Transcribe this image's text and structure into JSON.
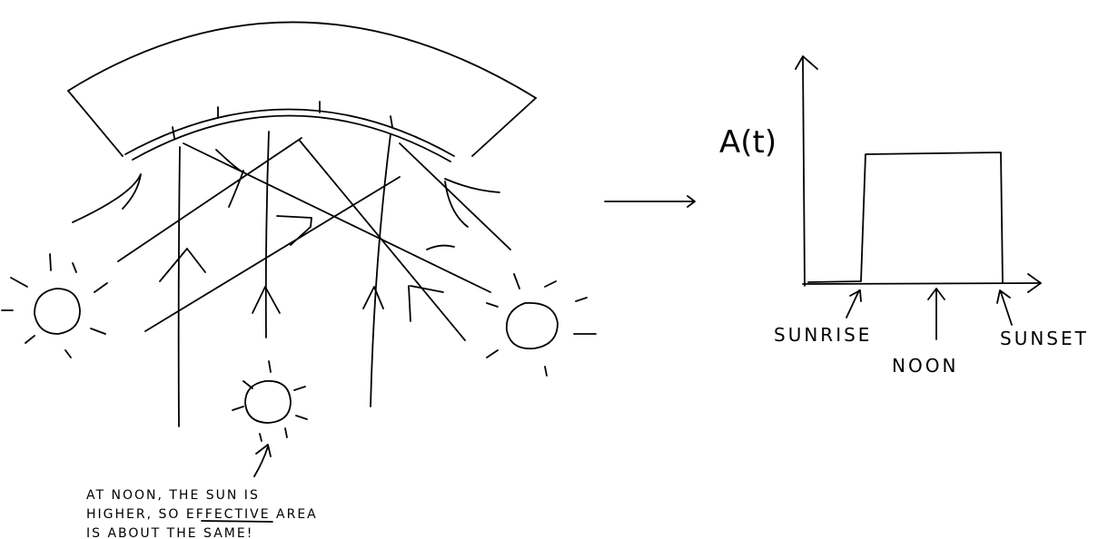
{
  "diagram": {
    "graph": {
      "y_label": "A(t)",
      "x_marks": {
        "sunrise": "SUNRISE",
        "noon": "NOON",
        "sunset": "SUNSET"
      }
    },
    "note": {
      "line1": "AT NOON, THE SUN IS",
      "line2_start": "HIGHER, SO ",
      "line2_emph": "EFFECTIVE",
      "line2_end": " AREA",
      "line3": "IS ABOUT THE SAME!"
    },
    "colors": {
      "ink": "#000000",
      "paper": "#ffffff"
    }
  }
}
